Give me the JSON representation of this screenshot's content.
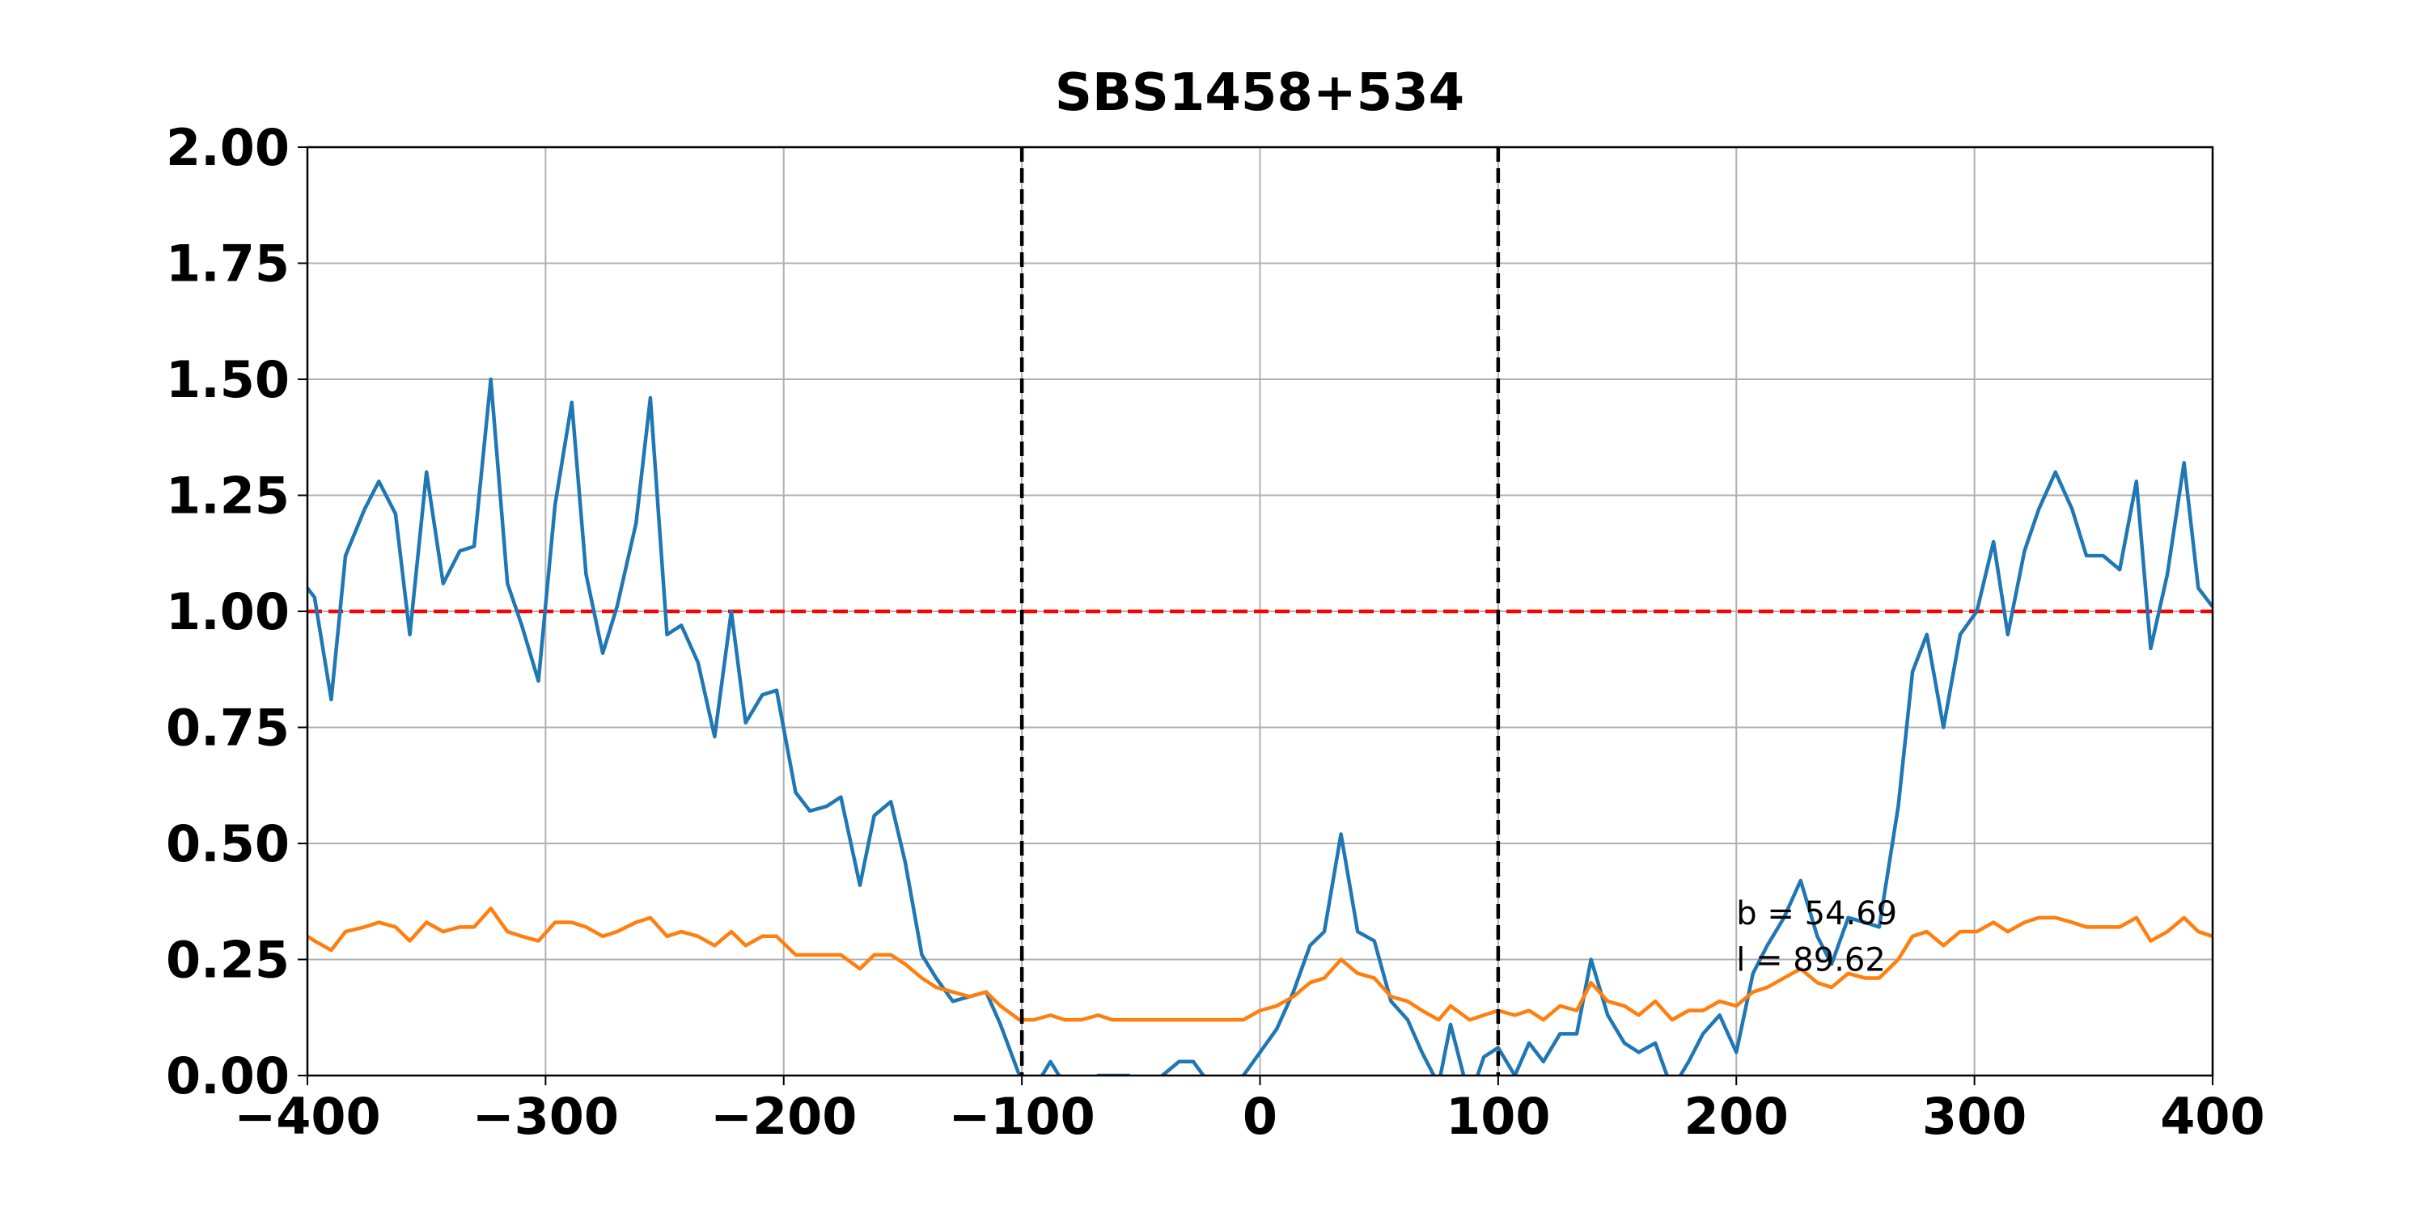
{
  "chart_data": {
    "type": "line",
    "title": "SBS1458+534",
    "x": [
      -400,
      -397,
      -390,
      -384,
      -376,
      -370,
      -363,
      -357,
      -350,
      -343,
      -336,
      -330,
      -323,
      -316,
      -310,
      -303,
      -296,
      -289,
      -283,
      -276,
      -270,
      -262,
      -256,
      -249,
      -243,
      -236,
      -229,
      -222,
      -216,
      -209,
      -203,
      -195,
      -189,
      -182,
      -176,
      -168,
      -162,
      -155,
      -149,
      -142,
      -136,
      -129,
      -122,
      -115,
      -109,
      -101,
      -95,
      -88,
      -82,
      -75,
      -68,
      -62,
      -55,
      -48,
      -41,
      -34,
      -28,
      -21,
      -14,
      -7,
      0,
      7,
      14,
      21,
      27,
      34,
      41,
      48,
      55,
      62,
      68,
      75,
      80,
      88,
      94,
      100,
      107,
      113,
      119,
      126,
      133,
      139,
      146,
      153,
      159,
      166,
      173,
      180,
      186,
      193,
      200,
      207,
      213,
      220,
      227,
      234,
      240,
      247,
      254,
      260,
      268,
      274,
      280,
      287,
      294,
      301,
      308,
      314,
      321,
      327,
      334,
      341,
      347,
      354,
      361,
      368,
      374,
      381,
      388,
      394,
      400
    ],
    "series": [
      {
        "color": "#1f77b4",
        "values": [
          1.05,
          1.03,
          0.81,
          1.12,
          1.22,
          1.28,
          1.21,
          0.95,
          1.3,
          1.06,
          1.13,
          1.14,
          1.5,
          1.06,
          0.97,
          0.85,
          1.23,
          1.45,
          1.08,
          0.91,
          1.01,
          1.19,
          1.46,
          0.95,
          0.97,
          0.89,
          0.73,
          1.0,
          0.76,
          0.82,
          0.83,
          0.61,
          0.57,
          0.58,
          0.6,
          0.41,
          0.56,
          0.59,
          0.46,
          0.26,
          0.21,
          0.16,
          0.17,
          0.18,
          0.11,
          0.0,
          -0.03,
          0.03,
          -0.02,
          -0.05,
          0.0,
          0.0,
          0.0,
          -0.03,
          0.0,
          0.03,
          0.03,
          -0.02,
          -0.01,
          0.0,
          0.05,
          0.1,
          0.18,
          0.28,
          0.31,
          0.52,
          0.31,
          0.29,
          0.16,
          0.12,
          0.05,
          -0.02,
          0.11,
          -0.05,
          0.04,
          0.06,
          0.0,
          0.07,
          0.03,
          0.09,
          0.09,
          0.25,
          0.13,
          0.07,
          0.05,
          0.07,
          -0.03,
          0.03,
          0.09,
          0.13,
          0.05,
          0.22,
          0.28,
          0.34,
          0.42,
          0.3,
          0.24,
          0.34,
          0.33,
          0.32,
          0.58,
          0.87,
          0.95,
          0.75,
          0.95,
          1.0,
          1.15,
          0.95,
          1.13,
          1.22,
          1.3,
          1.22,
          1.12,
          1.12,
          1.09,
          1.28,
          0.92,
          1.08,
          1.32,
          1.05,
          1.01
        ]
      },
      {
        "color": "#ff7f0e",
        "values": [
          0.3,
          0.29,
          0.27,
          0.31,
          0.32,
          0.33,
          0.32,
          0.29,
          0.33,
          0.31,
          0.32,
          0.32,
          0.36,
          0.31,
          0.3,
          0.29,
          0.33,
          0.33,
          0.32,
          0.3,
          0.31,
          0.33,
          0.34,
          0.3,
          0.31,
          0.3,
          0.28,
          0.31,
          0.28,
          0.3,
          0.3,
          0.26,
          0.26,
          0.26,
          0.26,
          0.23,
          0.26,
          0.26,
          0.24,
          0.21,
          0.19,
          0.18,
          0.17,
          0.18,
          0.15,
          0.12,
          0.12,
          0.13,
          0.12,
          0.12,
          0.13,
          0.12,
          0.12,
          0.12,
          0.12,
          0.12,
          0.12,
          0.12,
          0.12,
          0.12,
          0.14,
          0.15,
          0.17,
          0.2,
          0.21,
          0.25,
          0.22,
          0.21,
          0.17,
          0.16,
          0.14,
          0.12,
          0.15,
          0.12,
          0.13,
          0.14,
          0.13,
          0.14,
          0.12,
          0.15,
          0.14,
          0.2,
          0.16,
          0.15,
          0.13,
          0.16,
          0.12,
          0.14,
          0.14,
          0.16,
          0.15,
          0.18,
          0.19,
          0.21,
          0.23,
          0.2,
          0.19,
          0.22,
          0.21,
          0.21,
          0.25,
          0.3,
          0.31,
          0.28,
          0.31,
          0.31,
          0.33,
          0.31,
          0.33,
          0.34,
          0.34,
          0.33,
          0.32,
          0.32,
          0.32,
          0.34,
          0.29,
          0.31,
          0.34,
          0.31,
          0.3
        ]
      }
    ],
    "xlim": [
      -400,
      400
    ],
    "ylim": [
      0,
      2
    ],
    "xticks": [
      {
        "value": -400,
        "label": "−400"
      },
      {
        "value": -300,
        "label": "−300"
      },
      {
        "value": -200,
        "label": "−200"
      },
      {
        "value": -100,
        "label": "−100"
      },
      0,
      100,
      200,
      300,
      400
    ],
    "yticks": [
      {
        "value": 0,
        "label": "0.00"
      },
      {
        "value": 0.25,
        "label": "0.25"
      },
      {
        "value": 0.5,
        "label": "0.50"
      },
      {
        "value": 0.75,
        "label": "0.75"
      },
      {
        "value": 1,
        "label": "1.00"
      },
      {
        "value": 1.25,
        "label": "1.25"
      },
      {
        "value": 1.5,
        "label": "1.50"
      },
      {
        "value": 1.75,
        "label": "1.75"
      },
      {
        "value": 2,
        "label": "2.00"
      }
    ],
    "grid": true,
    "vlines": [
      {
        "x": -100,
        "color": "#000000"
      },
      {
        "x": 100,
        "color": "#000000"
      }
    ],
    "hlines": [
      {
        "y": 1,
        "color": "#ff0000"
      }
    ],
    "annotations": [
      {
        "text": "b = 54.69",
        "x": 200,
        "y": 0.35
      },
      {
        "text": "l = 89.62",
        "x": 200,
        "y": 0.25
      }
    ]
  }
}
